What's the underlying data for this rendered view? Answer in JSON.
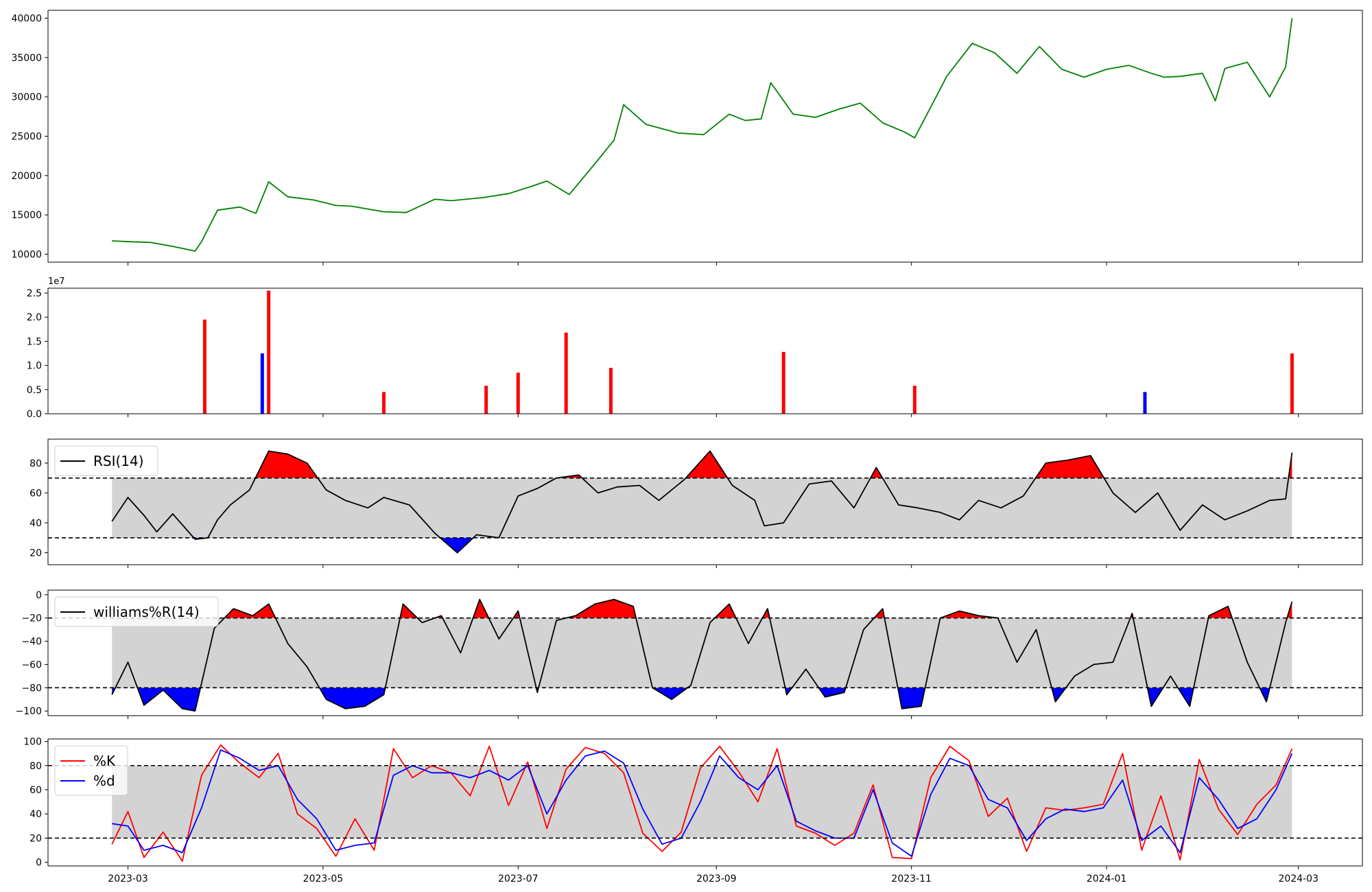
{
  "chart_data": [
    {
      "type": "line",
      "panel": "price",
      "ylim": [
        9000,
        41000
      ],
      "yticks": [
        10000,
        15000,
        20000,
        25000,
        30000,
        35000,
        40000
      ],
      "grid": false,
      "series": [
        {
          "color": "#008000",
          "x": [
            "2023-02-24",
            "2023-03-01",
            "2023-03-08",
            "2023-03-15",
            "2023-03-22",
            "2023-03-24",
            "2023-03-29",
            "2023-04-05",
            "2023-04-10",
            "2023-04-14",
            "2023-04-20",
            "2023-04-28",
            "2023-05-05",
            "2023-05-10",
            "2023-05-20",
            "2023-05-27",
            "2023-06-05",
            "2023-06-10",
            "2023-06-20",
            "2023-06-28",
            "2023-07-05",
            "2023-07-10",
            "2023-07-17",
            "2023-07-25",
            "2023-07-31",
            "2023-08-03",
            "2023-08-10",
            "2023-08-20",
            "2023-08-28",
            "2023-09-05",
            "2023-09-10",
            "2023-09-15",
            "2023-09-18",
            "2023-09-25",
            "2023-10-02",
            "2023-10-09",
            "2023-10-16",
            "2023-10-23",
            "2023-10-30",
            "2023-11-02",
            "2023-11-10",
            "2023-11-12",
            "2023-11-20",
            "2023-11-27",
            "2023-12-04",
            "2023-12-11",
            "2023-12-18",
            "2023-12-25",
            "2024-01-01",
            "2024-01-08",
            "2024-01-15",
            "2024-01-19",
            "2024-01-24",
            "2024-01-31",
            "2024-02-04",
            "2024-02-07",
            "2024-02-14",
            "2024-02-21",
            "2024-02-26",
            "2024-02-28"
          ],
          "values": [
            11700,
            11600,
            11500,
            11000,
            10400,
            11600,
            15600,
            16000,
            15200,
            19200,
            17300,
            16900,
            16200,
            16100,
            15400,
            15300,
            17000,
            16800,
            17200,
            17700,
            18600,
            19300,
            17600,
            21500,
            24500,
            29000,
            26500,
            25400,
            25200,
            27800,
            27000,
            27200,
            31800,
            27800,
            27400,
            28400,
            29200,
            26700,
            25500,
            24800,
            31000,
            32600,
            36800,
            35600,
            33000,
            36400,
            33500,
            32500,
            33500,
            34000,
            33000,
            32500,
            32600,
            33000,
            29500,
            33600,
            34400,
            30000,
            33800,
            40000
          ]
        }
      ]
    },
    {
      "type": "bar",
      "panel": "volume",
      "offset_text": "1e7",
      "ylim": [
        0,
        2.6
      ],
      "yticks": [
        0.0,
        0.5,
        1.0,
        1.5,
        2.0,
        2.5
      ],
      "grid": false,
      "spikes": [
        {
          "x": "2023-03-25",
          "value": 1.95,
          "color": "#ff0000"
        },
        {
          "x": "2023-04-12",
          "value": 1.25,
          "color": "#0000ff"
        },
        {
          "x": "2023-04-14",
          "value": 2.55,
          "color": "#ff0000"
        },
        {
          "x": "2023-05-20",
          "value": 0.45,
          "color": "#ff0000"
        },
        {
          "x": "2023-06-21",
          "value": 0.58,
          "color": "#ff0000"
        },
        {
          "x": "2023-07-01",
          "value": 0.85,
          "color": "#ff0000"
        },
        {
          "x": "2023-07-16",
          "value": 1.68,
          "color": "#ff0000"
        },
        {
          "x": "2023-07-30",
          "value": 0.95,
          "color": "#ff0000"
        },
        {
          "x": "2023-09-22",
          "value": 1.28,
          "color": "#ff0000"
        },
        {
          "x": "2023-11-02",
          "value": 0.58,
          "color": "#ff0000"
        },
        {
          "x": "2024-01-13",
          "value": 0.45,
          "color": "#0000ff"
        },
        {
          "x": "2024-02-28",
          "value": 1.25,
          "color": "#ff0000"
        }
      ]
    },
    {
      "type": "line",
      "panel": "rsi",
      "series": [
        {
          "name": "RSI(14)",
          "color": "#000000",
          "x": [
            "2023-02-24",
            "2023-03-01",
            "2023-03-06",
            "2023-03-10",
            "2023-03-15",
            "2023-03-22",
            "2023-03-26",
            "2023-03-29",
            "2023-04-02",
            "2023-04-08",
            "2023-04-14",
            "2023-04-20",
            "2023-04-26",
            "2023-05-02",
            "2023-05-08",
            "2023-05-15",
            "2023-05-20",
            "2023-05-28",
            "2023-06-05",
            "2023-06-12",
            "2023-06-18",
            "2023-06-25",
            "2023-07-01",
            "2023-07-07",
            "2023-07-13",
            "2023-07-20",
            "2023-07-26",
            "2023-08-01",
            "2023-08-08",
            "2023-08-14",
            "2023-08-22",
            "2023-08-30",
            "2023-09-06",
            "2023-09-13",
            "2023-09-16",
            "2023-09-22",
            "2023-09-30",
            "2023-10-07",
            "2023-10-14",
            "2023-10-21",
            "2023-10-28",
            "2023-11-03",
            "2023-11-10",
            "2023-11-16",
            "2023-11-22",
            "2023-11-29",
            "2023-12-06",
            "2023-12-13",
            "2023-12-20",
            "2023-12-27",
            "2024-01-03",
            "2024-01-10",
            "2024-01-17",
            "2024-01-24",
            "2024-01-31",
            "2024-02-07",
            "2024-02-14",
            "2024-02-21",
            "2024-02-26",
            "2024-02-28"
          ],
          "values": [
            41,
            57,
            45,
            34,
            46,
            29,
            30,
            42,
            52,
            62,
            88,
            86,
            80,
            62,
            55,
            50,
            57,
            52,
            33,
            20,
            32,
            30,
            58,
            63,
            70,
            72,
            60,
            64,
            65,
            55,
            69,
            88,
            65,
            55,
            38,
            40,
            66,
            68,
            50,
            77,
            52,
            50,
            47,
            42,
            55,
            50,
            58,
            80,
            82,
            85,
            60,
            47,
            60,
            35,
            52,
            42,
            48,
            55,
            56,
            87
          ]
        }
      ],
      "ylim": [
        12,
        96
      ],
      "yticks": [
        20,
        40,
        60,
        80
      ],
      "thresholds": [
        30,
        70
      ],
      "grid": false,
      "legend": "top-left"
    },
    {
      "type": "line",
      "panel": "williams",
      "series": [
        {
          "name": "williams%R(14)",
          "color": "#000000",
          "x": [
            "2023-02-24",
            "2023-03-01",
            "2023-03-06",
            "2023-03-12",
            "2023-03-18",
            "2023-03-22",
            "2023-03-28",
            "2023-04-03",
            "2023-04-09",
            "2023-04-14",
            "2023-04-20",
            "2023-04-26",
            "2023-05-02",
            "2023-05-08",
            "2023-05-14",
            "2023-05-20",
            "2023-05-26",
            "2023-06-01",
            "2023-06-07",
            "2023-06-13",
            "2023-06-19",
            "2023-06-25",
            "2023-07-01",
            "2023-07-07",
            "2023-07-13",
            "2023-07-19",
            "2023-07-25",
            "2023-07-31",
            "2023-08-06",
            "2023-08-12",
            "2023-08-18",
            "2023-08-24",
            "2023-08-30",
            "2023-09-05",
            "2023-09-11",
            "2023-09-17",
            "2023-09-23",
            "2023-09-29",
            "2023-10-05",
            "2023-10-11",
            "2023-10-17",
            "2023-10-23",
            "2023-10-29",
            "2023-11-04",
            "2023-11-10",
            "2023-11-16",
            "2023-11-22",
            "2023-11-28",
            "2023-12-04",
            "2023-12-10",
            "2023-12-16",
            "2023-12-22",
            "2023-12-28",
            "2024-01-03",
            "2024-01-09",
            "2024-01-15",
            "2024-01-21",
            "2024-01-27",
            "2024-02-02",
            "2024-02-08",
            "2024-02-14",
            "2024-02-20",
            "2024-02-26",
            "2024-02-28"
          ],
          "values": [
            -86,
            -58,
            -95,
            -82,
            -98,
            -100,
            -29,
            -12,
            -18,
            -8,
            -42,
            -62,
            -90,
            -98,
            -96,
            -86,
            -8,
            -24,
            -18,
            -50,
            -4,
            -38,
            -14,
            -84,
            -22,
            -18,
            -8,
            -4,
            -10,
            -80,
            -90,
            -78,
            -24,
            -8,
            -42,
            -12,
            -86,
            -64,
            -88,
            -84,
            -30,
            -12,
            -98,
            -96,
            -20,
            -14,
            -18,
            -20,
            -58,
            -30,
            -92,
            -70,
            -60,
            -58,
            -16,
            -96,
            -70,
            -96,
            -18,
            -10,
            -58,
            -92,
            -24,
            -6
          ]
        }
      ],
      "ylim": [
        -104,
        4
      ],
      "yticks": [
        -100,
        -80,
        -60,
        -40,
        -20,
        0
      ],
      "thresholds": [
        -80,
        -20
      ],
      "grid": false,
      "legend": "top-left"
    },
    {
      "type": "line",
      "panel": "stochastic",
      "xlim": [
        "2023-02-04",
        "2024-03-21"
      ],
      "xticks": [
        "2023-03",
        "2023-05",
        "2023-07",
        "2023-09",
        "2023-11",
        "2024-01",
        "2024-03"
      ],
      "series": [
        {
          "name": "%K",
          "color": "#ff0000",
          "x": [
            "2023-02-24",
            "2023-03-01",
            "2023-03-06",
            "2023-03-12",
            "2023-03-18",
            "2023-03-24",
            "2023-03-30",
            "2023-04-05",
            "2023-04-11",
            "2023-04-17",
            "2023-04-23",
            "2023-04-29",
            "2023-05-05",
            "2023-05-11",
            "2023-05-17",
            "2023-05-23",
            "2023-05-29",
            "2023-06-04",
            "2023-06-10",
            "2023-06-16",
            "2023-06-22",
            "2023-06-28",
            "2023-07-04",
            "2023-07-10",
            "2023-07-16",
            "2023-07-22",
            "2023-07-28",
            "2023-08-03",
            "2023-08-09",
            "2023-08-15",
            "2023-08-21",
            "2023-08-27",
            "2023-09-02",
            "2023-09-08",
            "2023-09-14",
            "2023-09-20",
            "2023-09-26",
            "2023-10-02",
            "2023-10-08",
            "2023-10-14",
            "2023-10-20",
            "2023-10-26",
            "2023-11-01",
            "2023-11-07",
            "2023-11-13",
            "2023-11-19",
            "2023-11-25",
            "2023-12-01",
            "2023-12-07",
            "2023-12-13",
            "2023-12-19",
            "2023-12-25",
            "2023-12-31",
            "2024-01-06",
            "2024-01-12",
            "2024-01-18",
            "2024-01-24",
            "2024-01-30",
            "2024-02-05",
            "2024-02-11",
            "2024-02-17",
            "2024-02-23",
            "2024-02-28"
          ],
          "values": [
            15,
            42,
            4,
            25,
            1,
            72,
            97,
            82,
            70,
            90,
            40,
            28,
            5,
            36,
            10,
            94,
            70,
            80,
            74,
            55,
            96,
            47,
            83,
            28,
            77,
            95,
            90,
            74,
            24,
            9,
            25,
            78,
            96,
            75,
            50,
            94,
            30,
            24,
            14,
            24,
            64,
            4,
            3,
            70,
            96,
            84,
            38,
            53,
            9,
            45,
            43,
            45,
            48,
            90,
            10,
            55,
            2,
            85,
            44,
            23,
            48,
            64,
            94
          ]
        },
        {
          "name": "%d",
          "color": "#0000ff",
          "x": [
            "2023-02-24",
            "2023-03-01",
            "2023-03-06",
            "2023-03-12",
            "2023-03-18",
            "2023-03-24",
            "2023-03-30",
            "2023-04-05",
            "2023-04-11",
            "2023-04-17",
            "2023-04-23",
            "2023-04-29",
            "2023-05-05",
            "2023-05-11",
            "2023-05-17",
            "2023-05-23",
            "2023-05-29",
            "2023-06-04",
            "2023-06-10",
            "2023-06-16",
            "2023-06-22",
            "2023-06-28",
            "2023-07-04",
            "2023-07-10",
            "2023-07-16",
            "2023-07-22",
            "2023-07-28",
            "2023-08-03",
            "2023-08-09",
            "2023-08-15",
            "2023-08-21",
            "2023-08-27",
            "2023-09-02",
            "2023-09-08",
            "2023-09-14",
            "2023-09-20",
            "2023-09-26",
            "2023-10-02",
            "2023-10-08",
            "2023-10-14",
            "2023-10-20",
            "2023-10-26",
            "2023-11-01",
            "2023-11-07",
            "2023-11-13",
            "2023-11-19",
            "2023-11-25",
            "2023-12-01",
            "2023-12-07",
            "2023-12-13",
            "2023-12-19",
            "2023-12-25",
            "2023-12-31",
            "2024-01-06",
            "2024-01-12",
            "2024-01-18",
            "2024-01-24",
            "2024-01-30",
            "2024-02-05",
            "2024-02-11",
            "2024-02-17",
            "2024-02-23",
            "2024-02-28"
          ],
          "values": [
            32,
            30,
            10,
            14,
            8,
            45,
            93,
            86,
            76,
            80,
            52,
            36,
            10,
            14,
            16,
            72,
            80,
            74,
            74,
            70,
            76,
            68,
            80,
            40,
            68,
            88,
            92,
            82,
            44,
            15,
            20,
            50,
            88,
            70,
            60,
            80,
            34,
            26,
            20,
            20,
            60,
            16,
            5,
            56,
            86,
            80,
            52,
            45,
            18,
            36,
            44,
            42,
            45,
            68,
            18,
            30,
            8,
            70,
            52,
            28,
            36,
            60,
            90
          ]
        }
      ],
      "ylim": [
        -3,
        102
      ],
      "yticks": [
        0,
        20,
        40,
        60,
        80,
        100
      ],
      "thresholds": [
        20,
        80
      ],
      "grid": false,
      "legend": "top-left"
    }
  ]
}
